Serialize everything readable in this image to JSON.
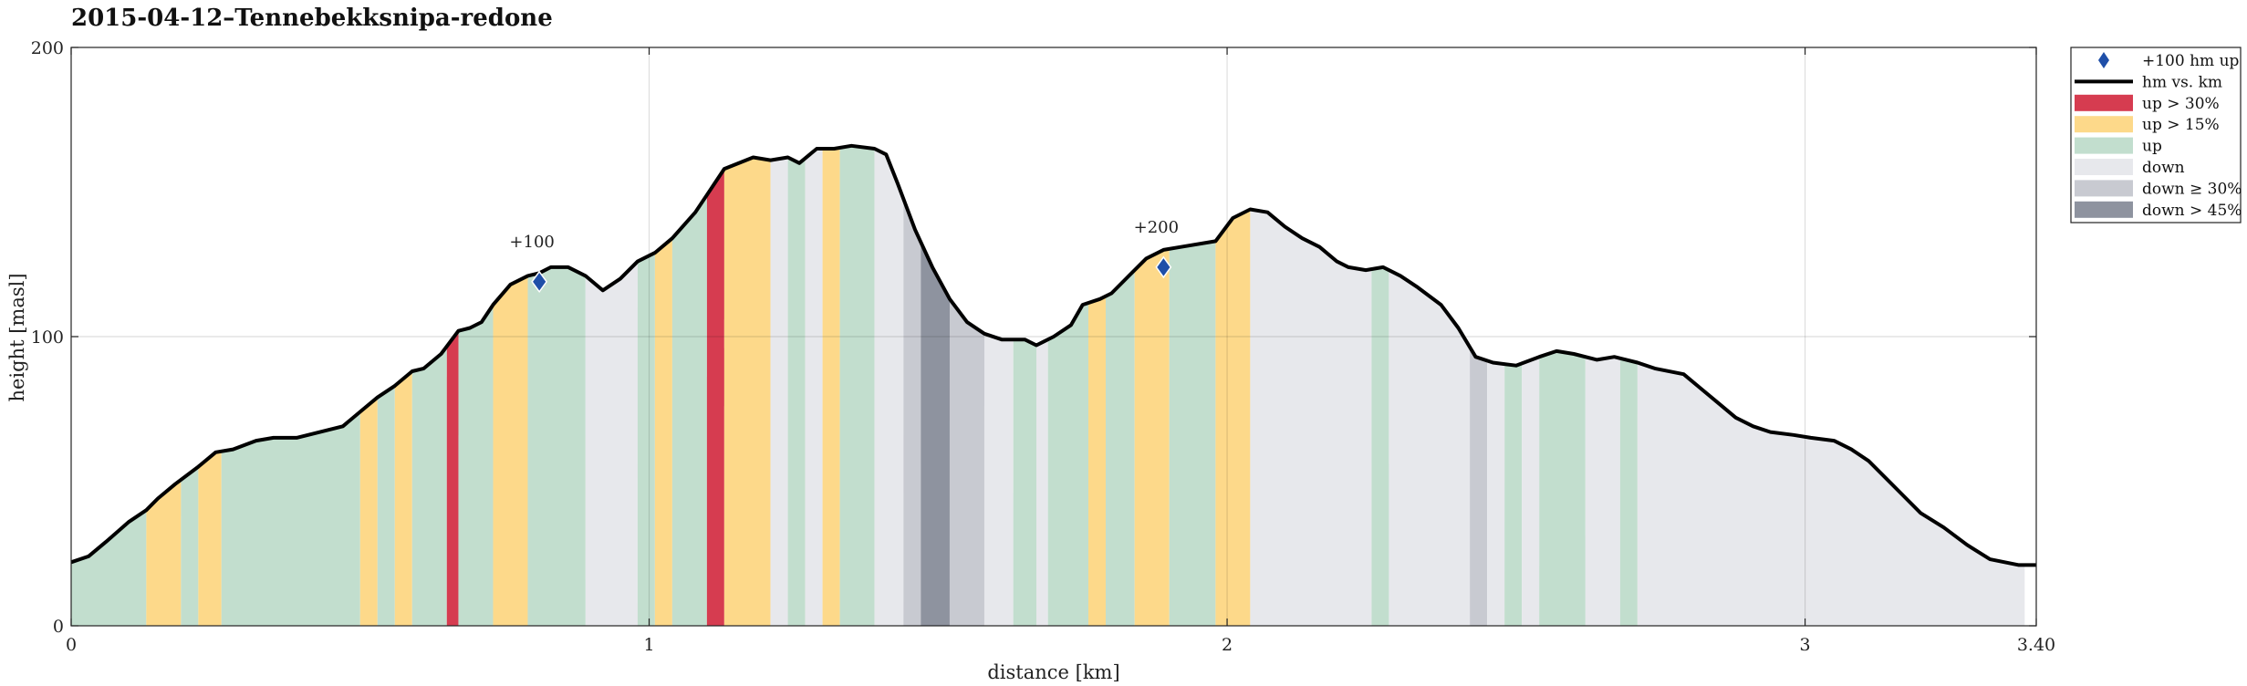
{
  "chart_data": {
    "type": "area",
    "title": "2015-04-12–Tennebekksnipa-redone",
    "xlabel": "distance [km]",
    "ylabel": "height [masl]",
    "xlim": [
      0,
      3.4
    ],
    "ylim": [
      0,
      200
    ],
    "x_ticks": [
      "0",
      "1",
      "2",
      "3",
      "3.40"
    ],
    "x_tick_values": [
      0,
      1,
      2,
      3,
      3.4
    ],
    "y_ticks": [
      "0",
      "100",
      "200"
    ],
    "y_tick_values": [
      0,
      100,
      200
    ],
    "grid": true,
    "legend_position": "top-right, outside",
    "colors": {
      "up30": "#d63c50",
      "up15": "#fdd98a",
      "up": "#c2dece",
      "down": "#e7e8ec",
      "down30": "#c8cad1",
      "down45": "#8e939f",
      "line": "#000000",
      "marker": "#1f4fa8"
    },
    "legend": [
      {
        "key": "marker",
        "label": "+100 hm up"
      },
      {
        "key": "line",
        "label": "hm vs. km"
      },
      {
        "key": "up30",
        "label": "up > 30%"
      },
      {
        "key": "up15",
        "label": "up > 15%"
      },
      {
        "key": "up",
        "label": "up"
      },
      {
        "key": "down",
        "label": "down"
      },
      {
        "key": "down30",
        "label": "down ≥ 30%"
      },
      {
        "key": "down45",
        "label": "down > 45%"
      }
    ],
    "profile": {
      "x": [
        0,
        0.03,
        0.06,
        0.1,
        0.13,
        0.15,
        0.18,
        0.22,
        0.25,
        0.28,
        0.32,
        0.35,
        0.39,
        0.41,
        0.47,
        0.5,
        0.53,
        0.56,
        0.59,
        0.61,
        0.64,
        0.67,
        0.69,
        0.71,
        0.73,
        0.76,
        0.79,
        0.81,
        0.83,
        0.86,
        0.89,
        0.92,
        0.95,
        0.98,
        1.01,
        1.04,
        1.08,
        1.1,
        1.13,
        1.18,
        1.21,
        1.24,
        1.26,
        1.29,
        1.32,
        1.35,
        1.39,
        1.41,
        1.43,
        1.46,
        1.49,
        1.52,
        1.55,
        1.58,
        1.61,
        1.65,
        1.67,
        1.7,
        1.73,
        1.75,
        1.78,
        1.8,
        1.83,
        1.86,
        1.89,
        1.92,
        1.98,
        2.01,
        2.04,
        2.07,
        2.1,
        2.13,
        2.16,
        2.19,
        2.21,
        2.24,
        2.27,
        2.3,
        2.33,
        2.37,
        2.4,
        2.43,
        2.46,
        2.5,
        2.54,
        2.57,
        2.6,
        2.64,
        2.67,
        2.71,
        2.74,
        2.79,
        2.82,
        2.85,
        2.88,
        2.91,
        2.94,
        2.98,
        3.01,
        3.05,
        3.08,
        3.11,
        3.14,
        3.17,
        3.2,
        3.24,
        3.28,
        3.32,
        3.37,
        3.4
      ],
      "y": [
        22,
        24,
        29,
        36,
        40,
        44,
        49,
        55,
        60,
        61,
        64,
        65,
        65,
        66,
        69,
        74,
        79,
        83,
        88,
        89,
        94,
        102,
        103,
        105,
        111,
        118,
        121,
        122,
        124,
        124,
        121,
        116,
        120,
        126,
        129,
        134,
        143,
        149,
        158,
        162,
        161,
        162,
        160,
        165,
        165,
        166,
        165,
        163,
        153,
        137,
        124,
        113,
        105,
        101,
        99,
        99,
        97,
        100,
        104,
        111,
        113,
        115,
        121,
        127,
        130,
        131,
        133,
        141,
        144,
        143,
        138,
        134,
        131,
        126,
        124,
        123,
        124,
        121,
        117,
        111,
        103,
        93,
        91,
        90,
        93,
        95,
        94,
        92,
        93,
        91,
        89,
        87,
        82,
        77,
        72,
        69,
        67,
        66,
        65,
        64,
        61,
        57,
        51,
        45,
        39,
        34,
        28,
        23,
        21,
        21
      ]
    },
    "segments": [
      {
        "from": 0.0,
        "to": 0.13,
        "type": "up"
      },
      {
        "from": 0.13,
        "to": 0.19,
        "type": "up15"
      },
      {
        "from": 0.19,
        "to": 0.22,
        "type": "up"
      },
      {
        "from": 0.22,
        "to": 0.26,
        "type": "up15"
      },
      {
        "from": 0.26,
        "to": 0.5,
        "type": "up"
      },
      {
        "from": 0.5,
        "to": 0.53,
        "type": "up15"
      },
      {
        "from": 0.53,
        "to": 0.56,
        "type": "up"
      },
      {
        "from": 0.56,
        "to": 0.59,
        "type": "up15"
      },
      {
        "from": 0.59,
        "to": 0.65,
        "type": "up"
      },
      {
        "from": 0.65,
        "to": 0.67,
        "type": "up30"
      },
      {
        "from": 0.67,
        "to": 0.73,
        "type": "up"
      },
      {
        "from": 0.73,
        "to": 0.79,
        "type": "up15"
      },
      {
        "from": 0.79,
        "to": 0.89,
        "type": "up"
      },
      {
        "from": 0.89,
        "to": 0.98,
        "type": "down"
      },
      {
        "from": 0.98,
        "to": 1.01,
        "type": "up"
      },
      {
        "from": 1.01,
        "to": 1.04,
        "type": "up15"
      },
      {
        "from": 1.04,
        "to": 1.1,
        "type": "up"
      },
      {
        "from": 1.1,
        "to": 1.13,
        "type": "up30"
      },
      {
        "from": 1.13,
        "to": 1.21,
        "type": "up15"
      },
      {
        "from": 1.21,
        "to": 1.24,
        "type": "down"
      },
      {
        "from": 1.24,
        "to": 1.27,
        "type": "up"
      },
      {
        "from": 1.27,
        "to": 1.3,
        "type": "down"
      },
      {
        "from": 1.3,
        "to": 1.33,
        "type": "up15"
      },
      {
        "from": 1.33,
        "to": 1.39,
        "type": "up"
      },
      {
        "from": 1.39,
        "to": 1.44,
        "type": "down"
      },
      {
        "from": 1.44,
        "to": 1.47,
        "type": "down30"
      },
      {
        "from": 1.47,
        "to": 1.52,
        "type": "down45"
      },
      {
        "from": 1.52,
        "to": 1.58,
        "type": "down30"
      },
      {
        "from": 1.58,
        "to": 1.63,
        "type": "down"
      },
      {
        "from": 1.63,
        "to": 1.67,
        "type": "up"
      },
      {
        "from": 1.67,
        "to": 1.69,
        "type": "down"
      },
      {
        "from": 1.69,
        "to": 1.76,
        "type": "up"
      },
      {
        "from": 1.76,
        "to": 1.79,
        "type": "up15"
      },
      {
        "from": 1.79,
        "to": 1.84,
        "type": "up"
      },
      {
        "from": 1.84,
        "to": 1.9,
        "type": "up15"
      },
      {
        "from": 1.9,
        "to": 1.98,
        "type": "up"
      },
      {
        "from": 1.98,
        "to": 2.04,
        "type": "up15"
      },
      {
        "from": 2.04,
        "to": 2.25,
        "type": "down"
      },
      {
        "from": 2.25,
        "to": 2.28,
        "type": "up"
      },
      {
        "from": 2.28,
        "to": 2.42,
        "type": "down"
      },
      {
        "from": 2.42,
        "to": 2.45,
        "type": "down30"
      },
      {
        "from": 2.45,
        "to": 2.48,
        "type": "down"
      },
      {
        "from": 2.48,
        "to": 2.51,
        "type": "up"
      },
      {
        "from": 2.51,
        "to": 2.54,
        "type": "down"
      },
      {
        "from": 2.54,
        "to": 2.62,
        "type": "up"
      },
      {
        "from": 2.62,
        "to": 2.68,
        "type": "down"
      },
      {
        "from": 2.68,
        "to": 2.71,
        "type": "up"
      },
      {
        "from": 2.71,
        "to": 3.38,
        "type": "down"
      }
    ],
    "markers": [
      {
        "x": 0.81,
        "y": 119,
        "label": "+100"
      },
      {
        "x": 1.89,
        "y": 124,
        "label": "+200"
      }
    ]
  }
}
